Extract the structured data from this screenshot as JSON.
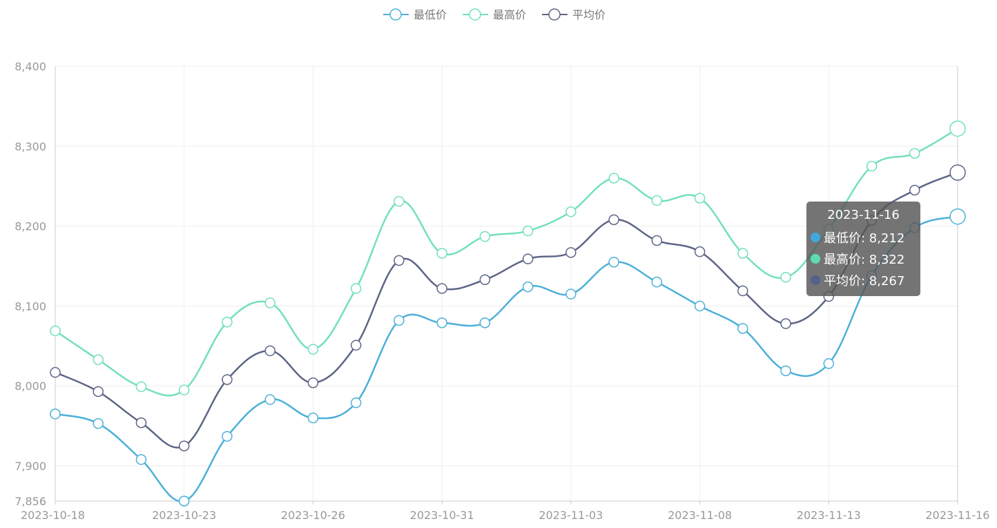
{
  "chart_data": {
    "type": "line",
    "smooth": true,
    "x": [
      "2023-10-18",
      "2023-10-19",
      "2023-10-20",
      "2023-10-23",
      "2023-10-24",
      "2023-10-25",
      "2023-10-26",
      "2023-10-27",
      "2023-10-30",
      "2023-10-31",
      "2023-11-01",
      "2023-11-02",
      "2023-11-03",
      "2023-11-06",
      "2023-11-07",
      "2023-11-08",
      "2023-11-09",
      "2023-11-10",
      "2023-11-13",
      "2023-11-14",
      "2023-11-15",
      "2023-11-16"
    ],
    "x_tick_labels": [
      "2023-10-18",
      "2023-10-23",
      "2023-10-26",
      "2023-10-31",
      "2023-11-03",
      "2023-11-08",
      "2023-11-13",
      "2023-11-16"
    ],
    "y_tick_labels": [
      "8,400",
      "8,300",
      "8,200",
      "8,100",
      "8,000",
      "7,900",
      "7,856"
    ],
    "ylim": [
      7856,
      8400
    ],
    "grid": true,
    "legend_position": "top-center",
    "series": [
      {
        "name": "最低价",
        "color": "#4bb0d8",
        "values": [
          7965,
          7953,
          7908,
          7856,
          7937,
          7983,
          7960,
          7979,
          8082,
          8079,
          8079,
          8124,
          8115,
          8155,
          8130,
          8100,
          8072,
          8019,
          8028,
          8138,
          8198,
          8212
        ]
      },
      {
        "name": "最高价",
        "color": "#72dfc0",
        "values": [
          8069,
          8033,
          7999,
          7995,
          8080,
          8104,
          8046,
          8122,
          8231,
          8166,
          8187,
          8194,
          8218,
          8260,
          8232,
          8235,
          8166,
          8136,
          8196,
          8275,
          8291,
          8322
        ]
      },
      {
        "name": "平均价",
        "color": "#5d6585",
        "values": [
          8017,
          7993,
          7954,
          7925,
          8008,
          8044,
          8004,
          8051,
          8157,
          8122,
          8133,
          8159,
          8167,
          8208,
          8182,
          8168,
          8119,
          8078,
          8112,
          8207,
          8245,
          8267
        ]
      }
    ]
  },
  "tooltip": {
    "title": "2023-11-16",
    "rows": [
      {
        "text": "最低价: 8,212",
        "color": "#3ea8dd"
      },
      {
        "text": "最高价: 8,322",
        "color": "#5edbb3"
      },
      {
        "text": "平均价: 8,267",
        "color": "#56608c"
      }
    ]
  }
}
